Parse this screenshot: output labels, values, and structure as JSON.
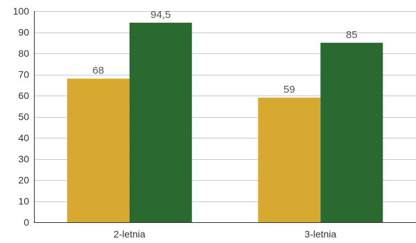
{
  "chart_data": {
    "type": "bar",
    "categories": [
      "2-letnia",
      "3-letnia"
    ],
    "series": [
      {
        "values": [
          68,
          59
        ],
        "labels": [
          "68",
          "59"
        ],
        "color": "#D7A931"
      },
      {
        "values": [
          94.5,
          85
        ],
        "labels": [
          "94,5",
          "85"
        ],
        "color": "#2A6A30"
      }
    ],
    "ylim": [
      0,
      100
    ],
    "yticks": [
      0,
      10,
      20,
      30,
      40,
      50,
      60,
      70,
      80,
      90,
      100
    ],
    "grid": true,
    "title": "",
    "xlabel": "",
    "ylabel": ""
  }
}
